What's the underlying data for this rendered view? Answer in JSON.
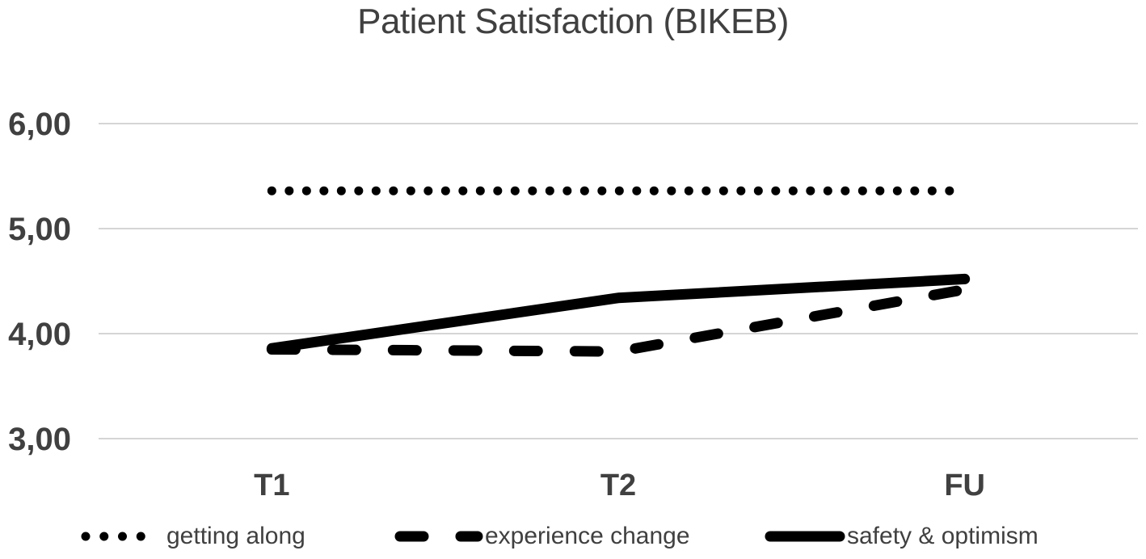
{
  "chart_data": {
    "type": "line",
    "title": "Patient Satisfaction (BIKEB)",
    "categories": [
      "T1",
      "T2",
      "FU"
    ],
    "series": [
      {
        "name": "getting along",
        "style": "dotted",
        "values": [
          5.36,
          5.36,
          5.36
        ]
      },
      {
        "name": "experience change",
        "style": "dashed",
        "values": [
          3.85,
          3.83,
          4.42
        ]
      },
      {
        "name": "safety & optimism",
        "style": "solid",
        "values": [
          3.86,
          4.34,
          4.52
        ]
      }
    ],
    "xlabel": "",
    "ylabel": "",
    "ylim": [
      3,
      6
    ],
    "yticks": {
      "values": [
        6,
        5,
        4,
        3
      ],
      "labels": [
        "6,00",
        "5,00",
        "4,00",
        "3,00"
      ]
    },
    "grid": "horizontal",
    "legend_position": "bottom",
    "colors": {
      "line": "#000000",
      "text": "#404040",
      "gridline": "#d5d5d5",
      "background": "#ffffff"
    }
  }
}
